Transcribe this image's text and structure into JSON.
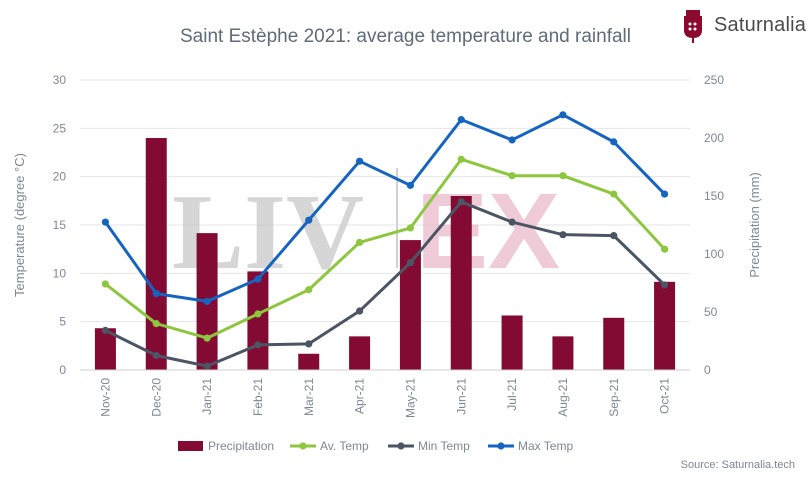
{
  "brand": {
    "name": "Saturnalia",
    "logo_color": "#8a0a30"
  },
  "watermark": {
    "left": "LIV",
    "right": "EX",
    "color_left": "#c8c8c8",
    "color_right": "#e8b9c8"
  },
  "source": "Source: Saturnalia.tech",
  "chart_data": {
    "type": "bar+line",
    "title": "Saint Estèphe 2021: average temperature and rainfall",
    "categories": [
      "Nov-20",
      "Dec-20",
      "Jan-21",
      "Feb-21",
      "Mar-21",
      "Apr-21",
      "May-21",
      "Jun-21",
      "Jul-21",
      "Aug-21",
      "Sep-21",
      "Oct-21"
    ],
    "y_left": {
      "label": "Temperature (degree °C)",
      "lim": [
        0,
        30
      ],
      "ticks": [
        0,
        5,
        10,
        15,
        20,
        25,
        30
      ]
    },
    "y_right": {
      "label": "Precipitation (mm)",
      "lim": [
        0,
        250
      ],
      "ticks": [
        0,
        50,
        100,
        150,
        200,
        250
      ]
    },
    "grid": true,
    "legend_position": "bottom",
    "bars": {
      "name": "Precipitation",
      "color": "#820a33",
      "axis": "right",
      "values": [
        36,
        200,
        118,
        85,
        14,
        29,
        112,
        150,
        47,
        29,
        45,
        76
      ]
    },
    "series": [
      {
        "name": "Av. Temp",
        "color": "#8dc63f",
        "axis": "left",
        "values": [
          8.9,
          4.8,
          3.3,
          5.8,
          8.3,
          13.2,
          14.7,
          21.8,
          20.1,
          20.1,
          18.2,
          12.5
        ]
      },
      {
        "name": "Min Temp",
        "color": "#4b5563",
        "axis": "left",
        "values": [
          4.1,
          1.5,
          0.4,
          2.6,
          2.7,
          6.1,
          11.1,
          17.4,
          15.3,
          14.0,
          13.9,
          8.8
        ]
      },
      {
        "name": "Max Temp",
        "color": "#1565c0",
        "axis": "left",
        "values": [
          15.3,
          7.9,
          7.1,
          9.4,
          15.5,
          21.6,
          19.1,
          25.9,
          23.8,
          26.4,
          23.6,
          18.2
        ]
      }
    ]
  }
}
